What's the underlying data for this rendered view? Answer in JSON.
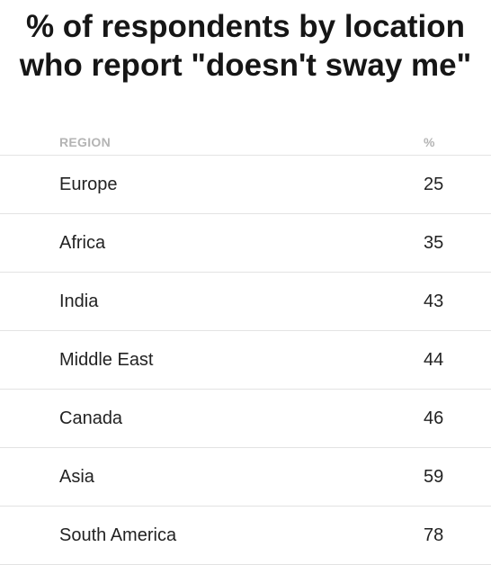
{
  "title": {
    "line1": "% of respondents by location",
    "line2": "who report \"doesn't sway me\""
  },
  "table": {
    "headers": {
      "region": "REGION",
      "percent": "%"
    }
  },
  "colors": {
    "header_text": "#b4b4b4",
    "row_divider": "#e3e3e3",
    "body_text": "#222222"
  },
  "chart_data": {
    "type": "table",
    "title": "% of respondents by location who report \"doesn't sway me\"",
    "columns": [
      "REGION",
      "%"
    ],
    "rows": [
      {
        "region": "Europe",
        "value": 25
      },
      {
        "region": "Africa",
        "value": 35
      },
      {
        "region": "India",
        "value": 43
      },
      {
        "region": "Middle East",
        "value": 44
      },
      {
        "region": "Canada",
        "value": 46
      },
      {
        "region": "Asia",
        "value": 59
      },
      {
        "region": "South America",
        "value": 78
      }
    ]
  }
}
